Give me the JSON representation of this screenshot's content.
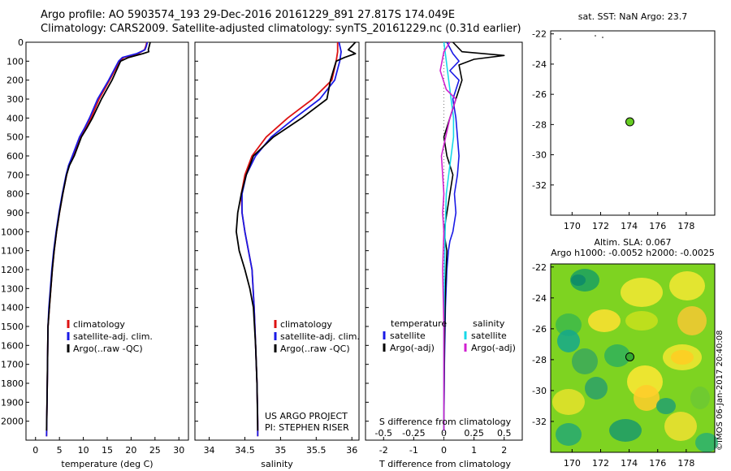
{
  "header": {
    "line1": "Argo profile: AO 5903574_193 29-Dec-2016 20161229_891 27.817S 174.049E",
    "line2": "Climatology: CARS2009. Satellite-adjusted climatology: synTS_20161229.nc (0.31d earlier)"
  },
  "stamp": "©IMOS 06-Jan-2017 20:40:08",
  "colors": {
    "clim": "#dd1111",
    "sat": "#1a1ae6",
    "argo": "#000000",
    "satdiff": "#18d8e8",
    "argodiff": "#d020d0"
  },
  "chart_data": [
    {
      "type": "line",
      "name": "temperature",
      "xlabel": "temperature (deg C)",
      "ylabel": "",
      "xlim": [
        -2,
        32
      ],
      "ylim": [
        2100,
        0
      ],
      "xticks": [
        0,
        5,
        10,
        15,
        20,
        25,
        30
      ],
      "yticks": [
        0,
        100,
        200,
        300,
        400,
        500,
        600,
        700,
        800,
        900,
        1000,
        1100,
        1200,
        1300,
        1400,
        1500,
        1600,
        1700,
        1800,
        1900,
        2000
      ],
      "legend": [
        "climatology",
        "satellite-adj. clim.",
        "Argo(..raw -QC)"
      ],
      "series": [
        {
          "name": "climatology",
          "color": "#dd1111",
          "x": [
            23.3,
            23.1,
            22.8,
            21.5,
            18.5,
            17.6,
            15.5,
            13.3,
            11.6,
            10.6,
            9.4,
            7.9,
            7.0,
            6.5,
            5.7,
            5.0,
            4.4,
            3.9,
            3.5,
            3.2,
            2.9,
            2.6,
            2.5,
            2.4,
            2.3
          ],
          "y": [
            0,
            20,
            40,
            60,
            80,
            100,
            200,
            300,
            400,
            450,
            500,
            600,
            650,
            700,
            800,
            900,
            1000,
            1100,
            1200,
            1300,
            1400,
            1500,
            1700,
            1900,
            2080
          ]
        },
        {
          "name": "satellite-adj. clim.",
          "color": "#1a1ae6",
          "x": [
            23.4,
            23.2,
            22.9,
            21.2,
            18.2,
            17.4,
            15.3,
            13.0,
            11.3,
            10.3,
            9.2,
            7.7,
            6.9,
            6.4,
            5.6,
            4.9,
            4.3,
            3.8,
            3.4,
            3.1,
            2.8,
            2.6,
            2.5,
            2.4,
            2.3
          ],
          "y": [
            0,
            20,
            40,
            60,
            80,
            100,
            200,
            300,
            400,
            450,
            500,
            600,
            650,
            700,
            800,
            900,
            1000,
            1100,
            1200,
            1300,
            1400,
            1500,
            1700,
            1900,
            2080
          ]
        },
        {
          "name": "Argo(..raw -QC)",
          "color": "#000000",
          "x": [
            24.0,
            23.8,
            23.6,
            23.7,
            22.5,
            19.5,
            17.8,
            16.0,
            13.8,
            11.9,
            10.8,
            9.6,
            8.1,
            7.1,
            6.5,
            5.7,
            5.0,
            4.4,
            3.9,
            3.5,
            3.2,
            2.9,
            2.6,
            2.5,
            2.4,
            2.3
          ],
          "y": [
            0,
            20,
            40,
            50,
            60,
            80,
            100,
            200,
            300,
            400,
            450,
            500,
            600,
            650,
            700,
            800,
            900,
            1000,
            1100,
            1200,
            1300,
            1400,
            1500,
            1700,
            1900,
            2050
          ]
        }
      ]
    },
    {
      "type": "line",
      "name": "salinity",
      "xlabel": "salinity",
      "xlim": [
        33.8,
        36.1
      ],
      "ylim": [
        2100,
        0
      ],
      "xticks": [
        34,
        34.5,
        35,
        35.5,
        36
      ],
      "xticklabels": [
        "34",
        "34.5",
        "35",
        "35.5",
        "36"
      ],
      "legend": [
        "climatology",
        "satellite-adj. clim.",
        "Argo(..raw -QC)"
      ],
      "annotation": [
        "US ARGO PROJECT",
        "PI: STEPHEN RISER"
      ],
      "series": [
        {
          "name": "climatology",
          "color": "#dd1111",
          "x": [
            35.8,
            35.8,
            35.78,
            35.72,
            35.45,
            35.1,
            34.8,
            34.6,
            34.5,
            34.45,
            34.46,
            34.5,
            34.55,
            34.6,
            34.63,
            34.65,
            34.67,
            34.68,
            34.68
          ],
          "y": [
            0,
            50,
            100,
            200,
            300,
            400,
            500,
            600,
            700,
            800,
            900,
            1000,
            1100,
            1200,
            1400,
            1600,
            1800,
            2000,
            2080
          ]
        },
        {
          "name": "satellite-adj. clim.",
          "color": "#1a1ae6",
          "x": [
            35.82,
            35.85,
            35.83,
            35.76,
            35.55,
            35.2,
            34.87,
            34.65,
            34.52,
            34.46,
            34.46,
            34.5,
            34.55,
            34.6,
            34.63,
            34.65,
            34.67,
            34.68,
            34.68
          ],
          "y": [
            0,
            50,
            100,
            200,
            300,
            400,
            500,
            600,
            700,
            800,
            900,
            1000,
            1100,
            1200,
            1400,
            1600,
            1800,
            2000,
            2080
          ]
        },
        {
          "name": "Argo(..raw -QC)",
          "color": "#000000",
          "x": [
            36.05,
            36.0,
            35.95,
            36.05,
            35.9,
            35.78,
            35.7,
            35.65,
            35.3,
            34.9,
            34.62,
            34.52,
            34.45,
            34.4,
            34.38,
            34.42,
            34.5,
            34.57,
            34.62,
            34.65,
            34.67,
            34.68
          ],
          "y": [
            0,
            20,
            40,
            60,
            80,
            100,
            200,
            300,
            400,
            500,
            600,
            700,
            800,
            900,
            1000,
            1100,
            1200,
            1300,
            1400,
            1600,
            1800,
            2050
          ]
        }
      ]
    },
    {
      "type": "line",
      "name": "difference from climatology",
      "xlabel": "T difference from climatology",
      "x2label": "S difference from climatology",
      "xlim": [
        -2.6,
        2.6
      ],
      "x2lim": [
        -0.65,
        0.65
      ],
      "ylim": [
        2100,
        0
      ],
      "xticks": [
        -2,
        -1,
        0,
        1,
        2
      ],
      "x2ticks": [
        -0.5,
        -0.25,
        0,
        0.25,
        0.5
      ],
      "x2ticklabels": [
        "-0.5",
        "-0.25",
        "0",
        "0.25",
        "0.5"
      ],
      "legend_titles": [
        "temperature",
        "salinity"
      ],
      "legend": [
        "satellite",
        "Argo(-adj)",
        "satellite",
        "Argo(-adj)"
      ],
      "series": [
        {
          "name": "T satellite",
          "color": "#1a1ae6",
          "x": [
            0.1,
            0.3,
            0.5,
            0.2,
            0.5,
            0.3,
            0.4,
            0.5,
            0.45,
            0.35,
            0.4,
            0.3,
            0.2,
            0.15,
            0.1,
            0.05,
            0.02,
            0.0
          ],
          "y": [
            0,
            60,
            100,
            150,
            200,
            300,
            400,
            600,
            700,
            800,
            900,
            1000,
            1050,
            1100,
            1200,
            1400,
            1700,
            2050
          ]
        },
        {
          "name": "T Argo(-adj)",
          "color": "#000000",
          "x": [
            0.3,
            0.6,
            2.0,
            1.0,
            0.5,
            0.6,
            0.4,
            0.2,
            0.0,
            0.1,
            0.3,
            0.1,
            0.0,
            0.1,
            0.05,
            0.02,
            0.0
          ],
          "y": [
            0,
            50,
            70,
            90,
            120,
            200,
            300,
            400,
            500,
            600,
            700,
            900,
            1000,
            1100,
            1300,
            1600,
            2050
          ]
        },
        {
          "name": "S satellite",
          "color": "#18d8e8",
          "x": [
            0.0,
            0.02,
            0.04,
            0.06,
            0.08,
            0.08,
            0.06,
            0.04,
            0.02,
            0.01,
            0.0,
            0.0
          ],
          "y": [
            0,
            100,
            200,
            300,
            400,
            500,
            600,
            700,
            800,
            1000,
            1500,
            2050
          ]
        },
        {
          "name": "S Argo(-adj)",
          "color": "#d020d0",
          "x": [
            0.05,
            0.0,
            -0.03,
            0.02,
            0.1,
            0.05,
            -0.02,
            0.0,
            -0.01,
            0.0,
            -0.01,
            0.0,
            0.0
          ],
          "y": [
            0,
            50,
            150,
            250,
            300,
            400,
            600,
            800,
            900,
            1000,
            1200,
            1500,
            2050
          ]
        }
      ]
    },
    {
      "type": "scatter",
      "name": "satellite SST map",
      "title": "sat. SST: NaN Argo: 23.7",
      "xlim": [
        168.5,
        180
      ],
      "ylim": [
        -34,
        -21.8
      ],
      "xticks": [
        170,
        172,
        174,
        176,
        178
      ],
      "yticks": [
        -22,
        -24,
        -26,
        -28,
        -30,
        -32
      ],
      "point": {
        "x": 174.05,
        "y": -27.82,
        "color": "#66cc22"
      }
    },
    {
      "type": "heatmap",
      "name": "altimetry sea level anomaly map",
      "title": "Altim. SLA: 0.067",
      "subtitle": "Argo h1000: -0.0052 h2000: -0.0025",
      "xlim": [
        168.5,
        180
      ],
      "ylim": [
        -34,
        -21.8
      ],
      "xticks": [
        170,
        172,
        174,
        176,
        178
      ],
      "yticks": [
        -22,
        -24,
        -26,
        -28,
        -30,
        -32
      ],
      "point": {
        "x": 174.05,
        "y": -27.82,
        "color": "#33aa33"
      }
    }
  ]
}
